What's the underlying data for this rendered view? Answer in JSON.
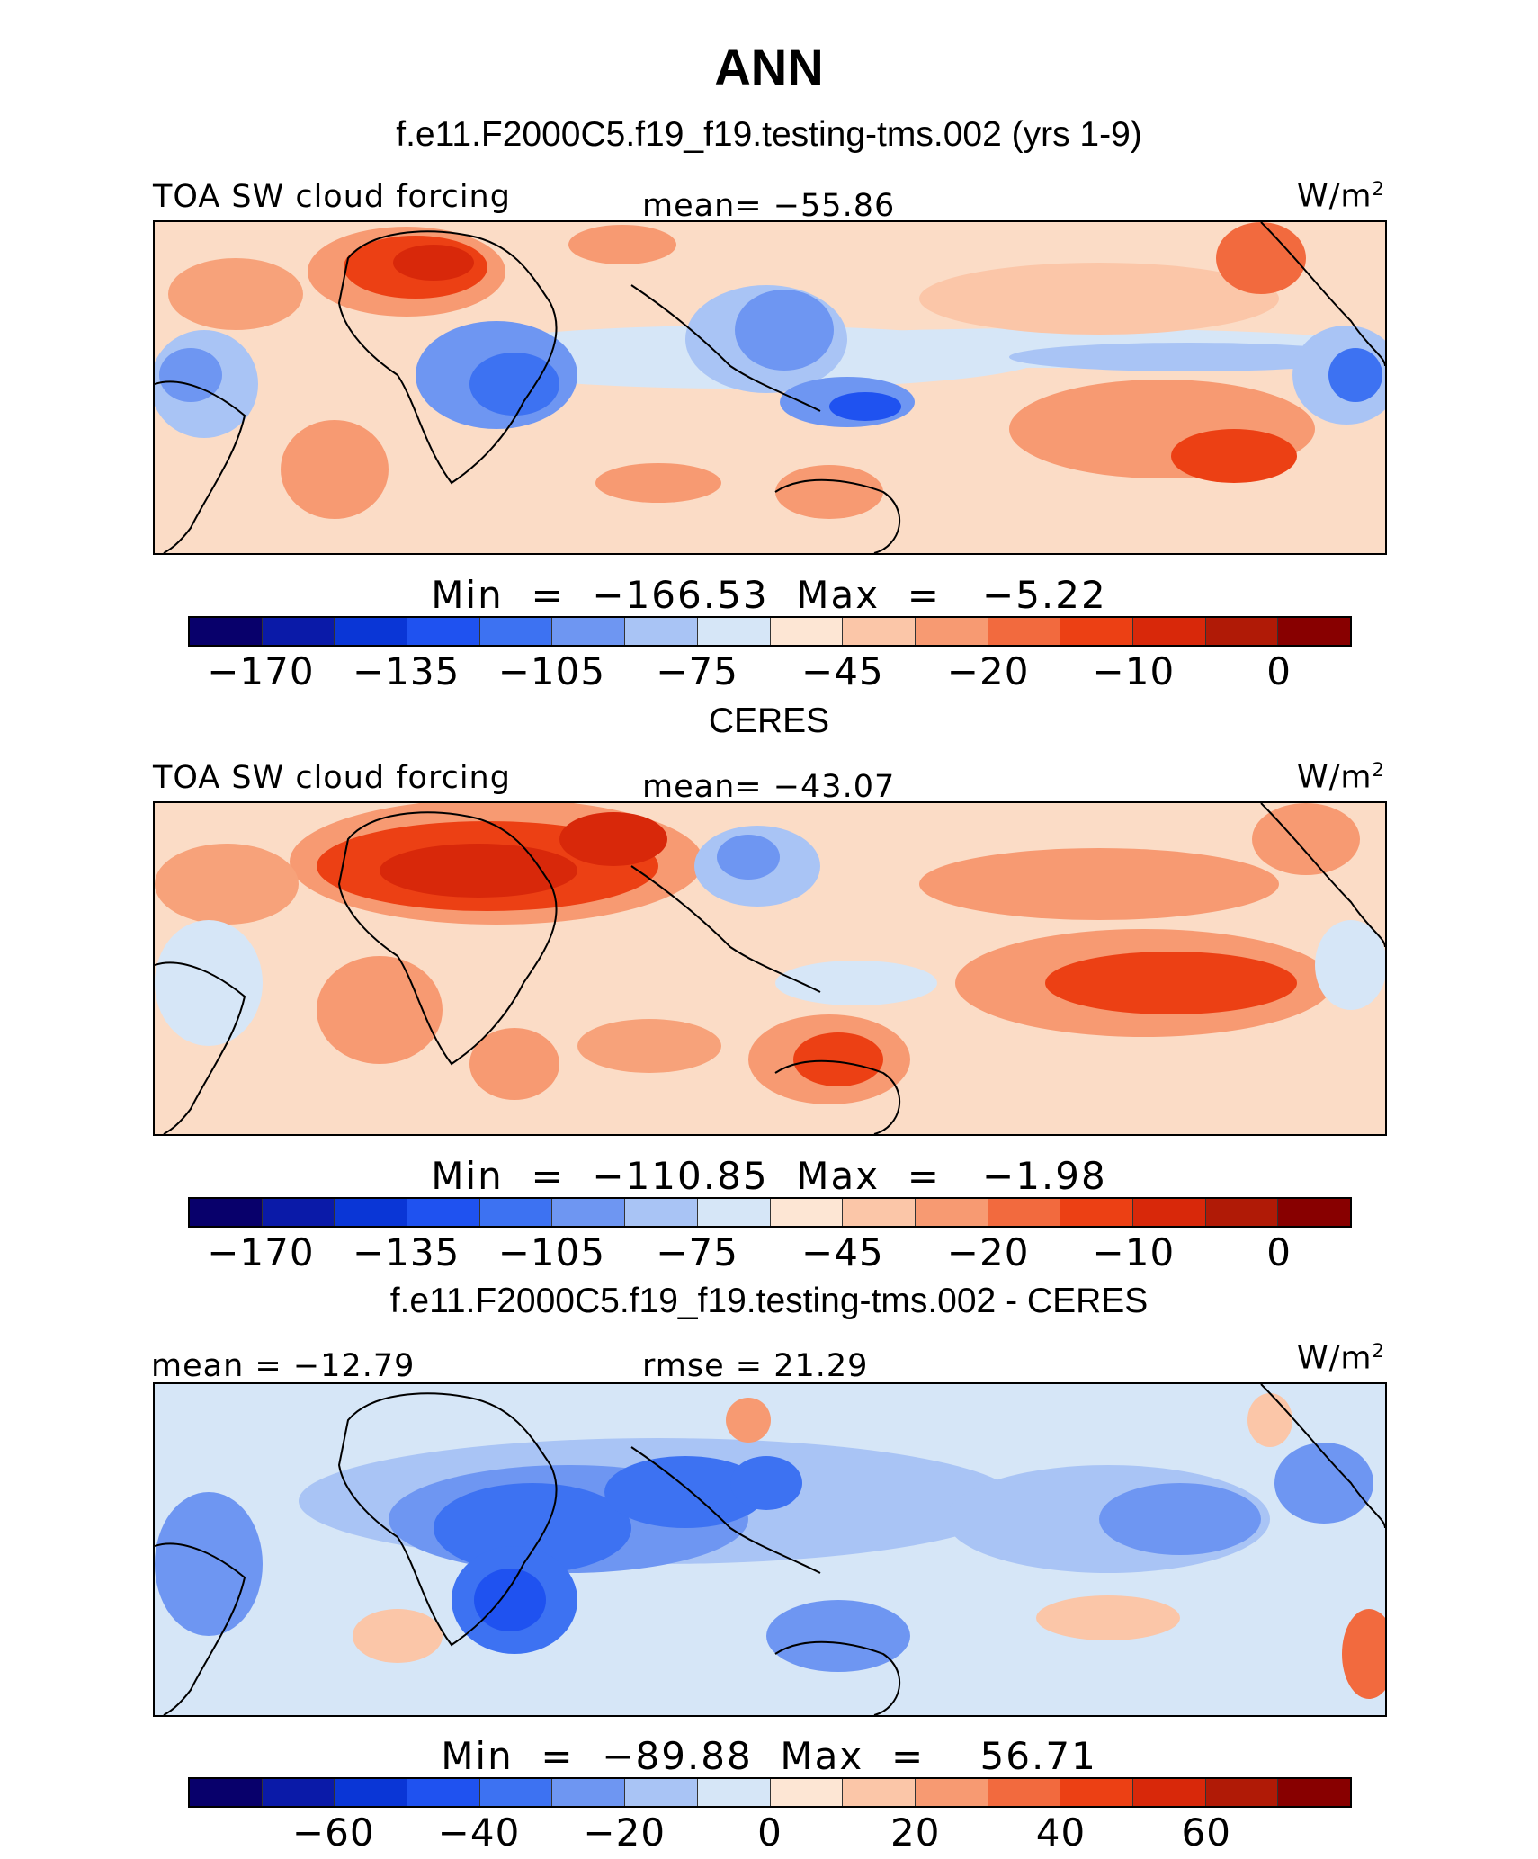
{
  "title": "ANN",
  "colors": [
    "#08006b",
    "#0a1aa8",
    "#0a36d6",
    "#1f52f0",
    "#3d72f2",
    "#6e96f2",
    "#a9c4f5",
    "#d6e6f7",
    "#fde6d4",
    "#fbc6a8",
    "#f79a72",
    "#f26a3e",
    "#ec4014",
    "#d8280a",
    "#b01a06",
    "#880000"
  ],
  "panels": [
    {
      "subtitle": "f.e11.F2000C5.f19_f19.testing-tms.002 (yrs 1-9)",
      "left_label": "TOA SW cloud forcing",
      "center_label": "mean=  −55.86",
      "units": "W/m",
      "units_sup": "2",
      "minmax": "Min  =  −166.53  Max  =   −5.22",
      "ticks": [
        "−170",
        "−135",
        "−105",
        "−75",
        "−45",
        "−20",
        "−10",
        "0"
      ]
    },
    {
      "subtitle": "CERES",
      "left_label": "TOA SW cloud forcing",
      "center_label": "mean=  −43.07",
      "units": "W/m",
      "units_sup": "2",
      "minmax": "Min  =  −110.85  Max  =   −1.98",
      "ticks": [
        "−170",
        "−135",
        "−105",
        "−75",
        "−45",
        "−20",
        "−10",
        "0"
      ]
    },
    {
      "subtitle": "f.e11.F2000C5.f19_f19.testing-tms.002 - CERES",
      "left_label": "mean  =  −12.79",
      "center_label": "rmse  =    21.29",
      "units": "W/m",
      "units_sup": "2",
      "minmax": "Min  =  −89.88  Max  =    56.71",
      "ticks": [
        "−60",
        "−40",
        "−20",
        "0",
        "20",
        "40",
        "60"
      ]
    }
  ],
  "chart_data": [
    {
      "type": "heatmap",
      "title": "f.e11.F2000C5.f19_f19.testing-tms.002 (yrs 1-9)",
      "variable": "TOA SW cloud forcing",
      "units": "W/m2",
      "mean": -55.86,
      "min": -166.53,
      "max": -5.22,
      "colorbar_ticks": [
        -170,
        -135,
        -105,
        -75,
        -45,
        -20,
        -10,
        0
      ]
    },
    {
      "type": "heatmap",
      "title": "CERES",
      "variable": "TOA SW cloud forcing",
      "units": "W/m2",
      "mean": -43.07,
      "min": -110.85,
      "max": -1.98,
      "colorbar_ticks": [
        -170,
        -135,
        -105,
        -75,
        -45,
        -20,
        -10,
        0
      ]
    },
    {
      "type": "heatmap",
      "title": "f.e11.F2000C5.f19_f19.testing-tms.002 - CERES",
      "units": "W/m2",
      "mean": -12.79,
      "rmse": 21.29,
      "min": -89.88,
      "max": 56.71,
      "colorbar_ticks": [
        -60,
        -40,
        -20,
        0,
        20,
        40,
        60
      ]
    }
  ]
}
